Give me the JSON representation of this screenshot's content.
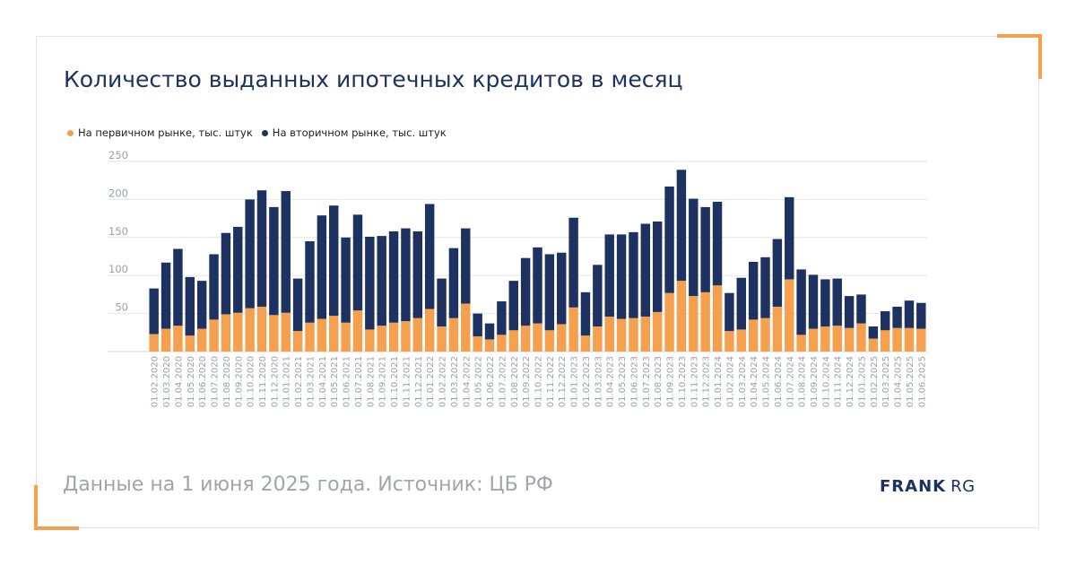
{
  "title": "Количество выданных ипотечных кредитов в месяц",
  "footer_note": "Данные на 1 июня 2025 года. Источник: ЦБ РФ",
  "brand": {
    "bold": "FRANK",
    "light": "RG"
  },
  "colors": {
    "primary": "#f5a04e",
    "secondary": "#1d3261",
    "grid": "#e6e6e6",
    "axis_text": "#9aa0aa"
  },
  "chart_data": {
    "type": "bar",
    "stacked": true,
    "legend_position": "top-left",
    "grid": true,
    "ylim": [
      0,
      250
    ],
    "yticks": [
      50,
      100,
      150,
      200,
      250
    ],
    "categories": [
      "01.02.2020",
      "01.03.2020",
      "01.04.2020",
      "01.05.2020",
      "01.06.2020",
      "01.07.2020",
      "01.08.2020",
      "01.09.2020",
      "01.10.2020",
      "01.11.2020",
      "01.12.2020",
      "01.01.2021",
      "01.02.2021",
      "01.03.2021",
      "01.04.2021",
      "01.05.2021",
      "01.06.2021",
      "01.07.2021",
      "01.08.2021",
      "01.09.2021",
      "01.10.2021",
      "01.11.2021",
      "01.12.2021",
      "01.01.2022",
      "01.02.2022",
      "01.03.2022",
      "01.04.2022",
      "01.05.2022",
      "01.06.2022",
      "01.07.2022",
      "01.08.2022",
      "01.09.2022",
      "01.10.2022",
      "01.11.2022",
      "01.12.2022",
      "01.01.2023",
      "01.02.2023",
      "01.03.2023",
      "01.04.2023",
      "01.05.2023",
      "01.06.2023",
      "01.07.2023",
      "01.08.2023",
      "01.09.2023",
      "01.10.2023",
      "01.11.2023",
      "01.12.2023",
      "01.01.2024",
      "01.02.2024",
      "01.03.2024",
      "01.04.2024",
      "01.05.2024",
      "01.06.2024",
      "01.07.2024",
      "01.08.2024",
      "01.09.2024",
      "01.10.2024",
      "01.11.2024",
      "01.12.2024",
      "01.01.2025",
      "01.02.2025",
      "01.03.2025",
      "01.04.2025",
      "01.05.2025",
      "01.06.2025"
    ],
    "series": [
      {
        "name": "На первичном рынке, тыс. штук",
        "color": "#f5a04e",
        "values": [
          23,
          30,
          34,
          21,
          30,
          42,
          49,
          51,
          57,
          59,
          48,
          51,
          27,
          38,
          43,
          47,
          38,
          54,
          29,
          34,
          38,
          40,
          44,
          56,
          33,
          44,
          63,
          20,
          16,
          22,
          28,
          34,
          37,
          28,
          36,
          58,
          21,
          33,
          46,
          43,
          44,
          46,
          52,
          77,
          93,
          73,
          78,
          87,
          27,
          29,
          42,
          44,
          59,
          95,
          22,
          30,
          33,
          34,
          31,
          37,
          17,
          28,
          31,
          31,
          30
        ]
      },
      {
        "name": "На вторичном рынке, тыс. штук",
        "color": "#1d3261",
        "values": [
          60,
          87,
          101,
          77,
          63,
          86,
          107,
          113,
          143,
          153,
          142,
          160,
          69,
          107,
          136,
          145,
          112,
          126,
          122,
          118,
          120,
          122,
          114,
          138,
          63,
          92,
          99,
          30,
          21,
          44,
          65,
          89,
          100,
          100,
          94,
          118,
          57,
          81,
          108,
          111,
          113,
          122,
          119,
          140,
          146,
          128,
          112,
          110,
          50,
          68,
          76,
          80,
          89,
          108,
          86,
          71,
          62,
          62,
          42,
          38,
          16,
          25,
          28,
          36,
          34
        ]
      }
    ]
  }
}
